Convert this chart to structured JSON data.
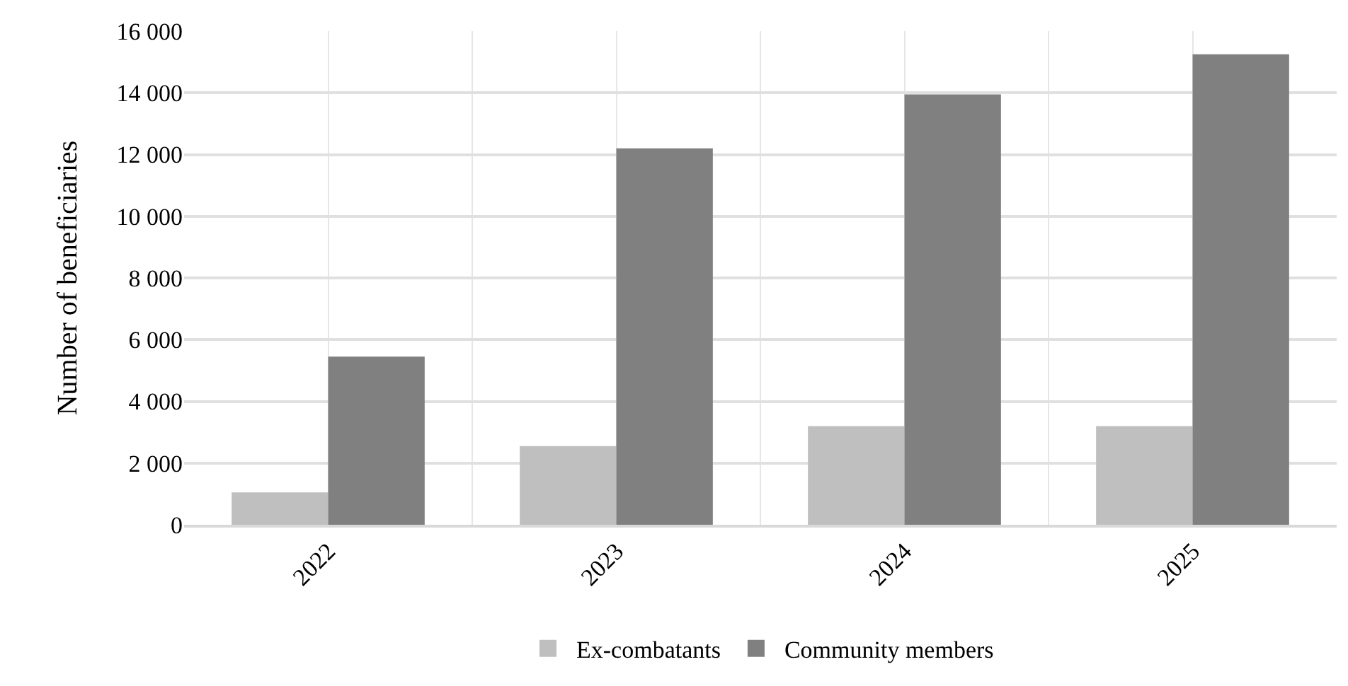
{
  "chart_data": {
    "type": "bar",
    "ylabel": "Number of beneficiaries",
    "categories": [
      "2022",
      "2023",
      "2024",
      "2025"
    ],
    "series": [
      {
        "name": "Ex-combatants",
        "color": "#bfbfbf",
        "values": [
          1050,
          2550,
          3200,
          3200
        ]
      },
      {
        "name": "Community members",
        "color": "#808080",
        "values": [
          5450,
          12200,
          13950,
          15250
        ]
      }
    ],
    "ylim": [
      0,
      16000
    ],
    "yticks": [
      {
        "value": 0,
        "label": "0"
      },
      {
        "value": 2000,
        "label": "2 000"
      },
      {
        "value": 4000,
        "label": "4 000"
      },
      {
        "value": 6000,
        "label": "6 000"
      },
      {
        "value": 8000,
        "label": "8 000"
      },
      {
        "value": 10000,
        "label": "10 000"
      },
      {
        "value": 12000,
        "label": "12 000"
      },
      {
        "value": 14000,
        "label": "14 000"
      },
      {
        "value": 16000,
        "label": "16 000"
      }
    ],
    "grid": true,
    "legend": "bottom"
  }
}
